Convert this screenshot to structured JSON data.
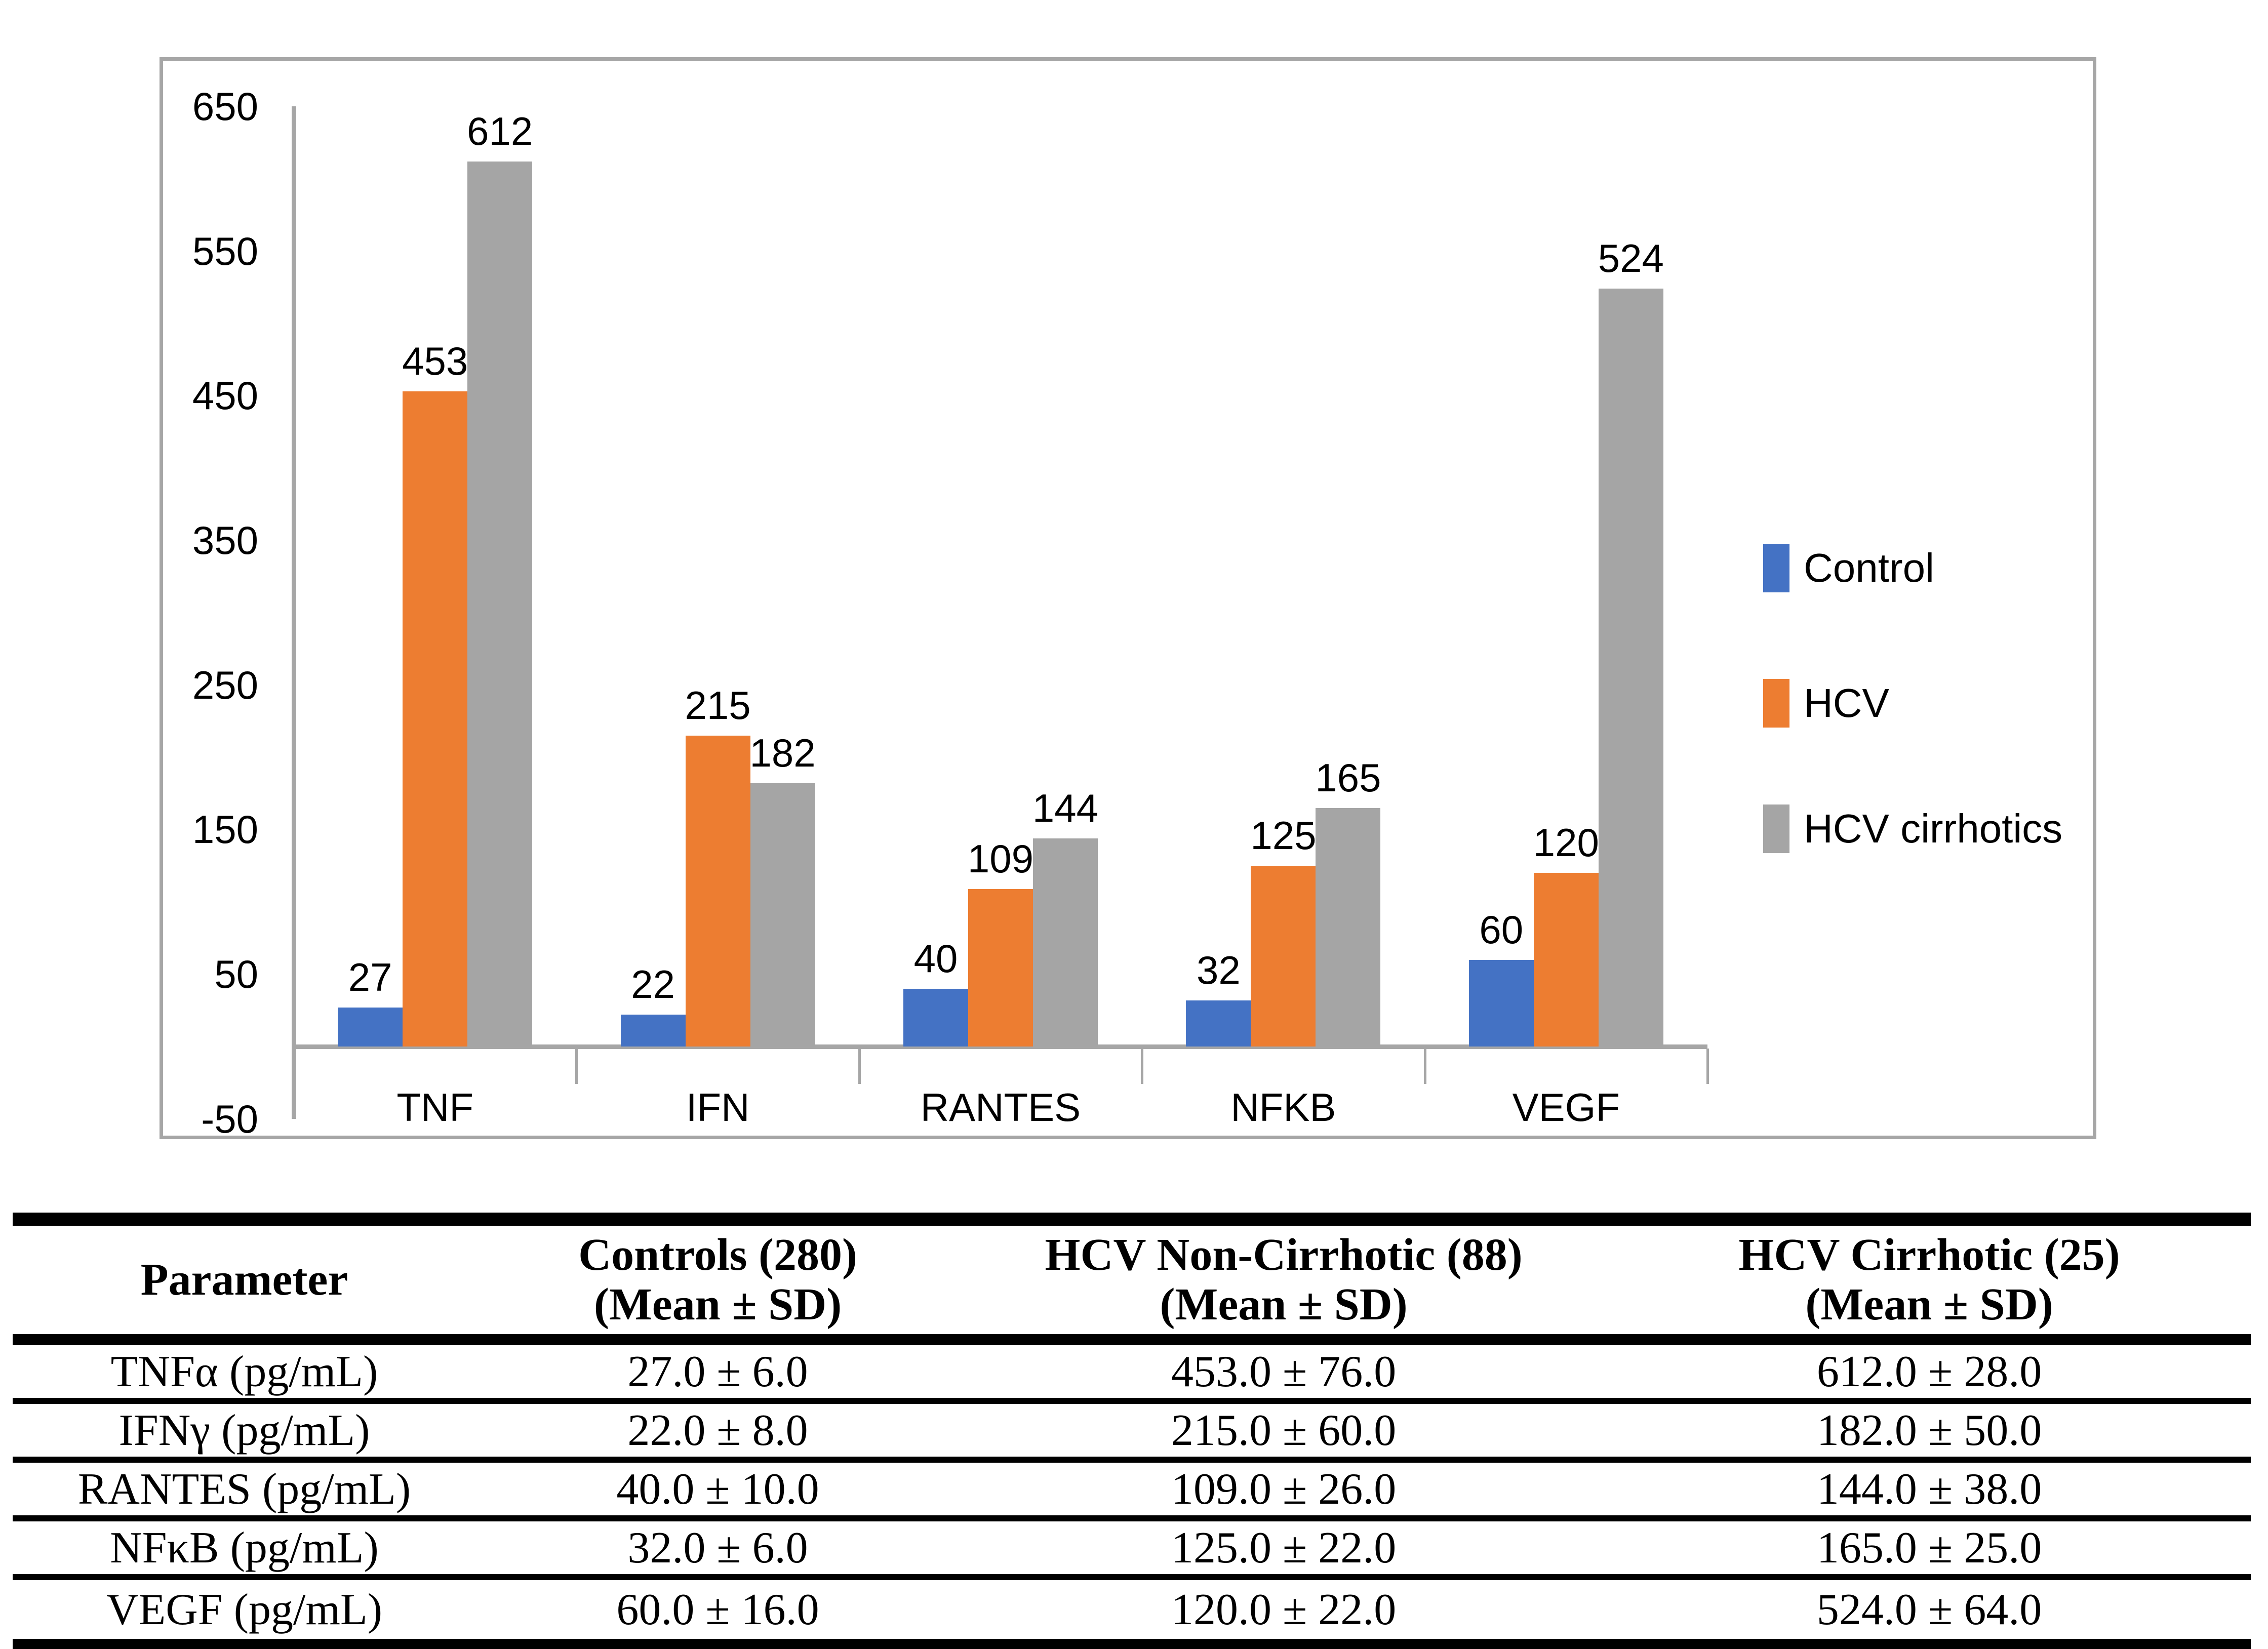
{
  "figure": {
    "kind": "grouped-bar-chart-with-summary-table"
  },
  "chart_data": {
    "type": "bar",
    "categories": [
      "TNF",
      "IFN",
      "RANTES",
      "NFKB",
      "VEGF"
    ],
    "series": [
      {
        "name": "Control",
        "color": "#4472C4",
        "values": [
          27,
          22,
          40,
          32,
          60
        ]
      },
      {
        "name": "HCV",
        "color": "#ED7D31",
        "values": [
          453,
          215,
          109,
          125,
          120
        ]
      },
      {
        "name": "HCV cirrhotics",
        "color": "#A5A5A5",
        "values": [
          612,
          182,
          144,
          165,
          524
        ]
      }
    ],
    "ylim": [
      -50,
      650
    ],
    "yticks": [
      650,
      550,
      450,
      350,
      250,
      150,
      50,
      -50
    ],
    "grid": false,
    "legend_position": "right",
    "data_labels": true,
    "axis_color": "#A6A6A6",
    "text_color": "#000000",
    "title": "",
    "xlabel": "",
    "ylabel": ""
  },
  "table": {
    "border_color": "#000000",
    "headers": [
      {
        "line1": "Parameter",
        "line2": ""
      },
      {
        "line1": "Controls (280)",
        "line2": "(Mean ± SD)"
      },
      {
        "line1": "HCV Non-Cirrhotic (88)",
        "line2": "(Mean ± SD)"
      },
      {
        "line1": "HCV Cirrhotic (25)",
        "line2": "(Mean ± SD)"
      }
    ],
    "rows": [
      [
        "TNFα (pg/mL)",
        "27.0 ± 6.0",
        "453.0 ± 76.0",
        "612.0 ± 28.0"
      ],
      [
        "IFNγ (pg/mL)",
        "22.0 ± 8.0",
        "215.0 ± 60.0",
        "182.0 ± 50.0"
      ],
      [
        "RANTES (pg/mL)",
        "40.0 ± 10.0",
        "109.0 ± 26.0",
        "144.0 ± 38.0"
      ],
      [
        "NFκB (pg/mL)",
        "32.0 ± 6.0",
        "125.0 ± 22.0",
        "165.0 ± 25.0"
      ],
      [
        "VEGF (pg/mL)",
        "60.0 ± 16.0",
        "120.0 ± 22.0",
        "524.0 ± 64.0"
      ]
    ]
  }
}
